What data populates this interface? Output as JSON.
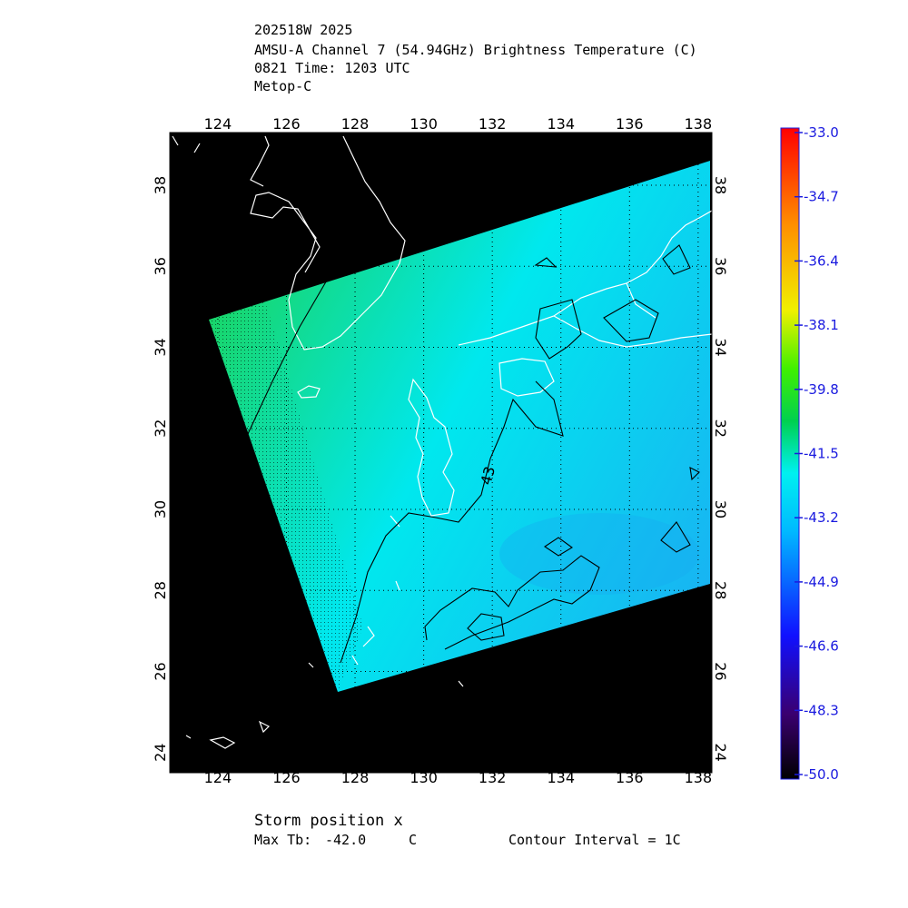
{
  "header": {
    "line1": "202518W 2025",
    "line2": "AMSU-A Channel 7 (54.94GHz) Brightness Temperature (C)",
    "line3": "0821 Time: 1203 UTC",
    "line4": "Metop-C"
  },
  "map": {
    "lon_range": [
      122.6,
      138.4
    ],
    "lat_range": [
      23.5,
      39.3
    ],
    "lon_ticks": [
      "124",
      "126",
      "128",
      "130",
      "132",
      "134",
      "136",
      "138"
    ],
    "lat_ticks": [
      "24",
      "26",
      "28",
      "30",
      "32",
      "34",
      "36",
      "38"
    ],
    "background_color": "#000000",
    "grid": "dotted",
    "swath_corners_lonlat": [
      [
        124.1,
        35.1
      ],
      [
        138.3,
        39.0
      ],
      [
        138.3,
        28.5
      ],
      [
        127.6,
        25.8
      ]
    ],
    "swath_colors": {
      "northwest": "#18d66a",
      "center": "#00e8ee",
      "southeast": "#18b4f2"
    },
    "contour_label": "43"
  },
  "colorbar": {
    "labels": [
      "-33.0",
      "-34.7",
      "-36.4",
      "-38.1",
      "-39.8",
      "-41.5",
      "-43.2",
      "-44.9",
      "-46.6",
      "-48.3",
      "-50.0"
    ],
    "min": -50.0,
    "max": -33.0,
    "color_stops": [
      "#000000",
      "#3a0070",
      "#1010ff",
      "#00b8ff",
      "#00f0f0",
      "#00d050",
      "#40f000",
      "#f0f000",
      "#ff9000",
      "#ff0000"
    ]
  },
  "footer": {
    "storm_position": "Storm position x",
    "max_tb_label": "Max Tb:",
    "max_tb_value": "-42.0",
    "max_tb_unit": "C",
    "contour_interval": "Contour Interval = 1C"
  }
}
